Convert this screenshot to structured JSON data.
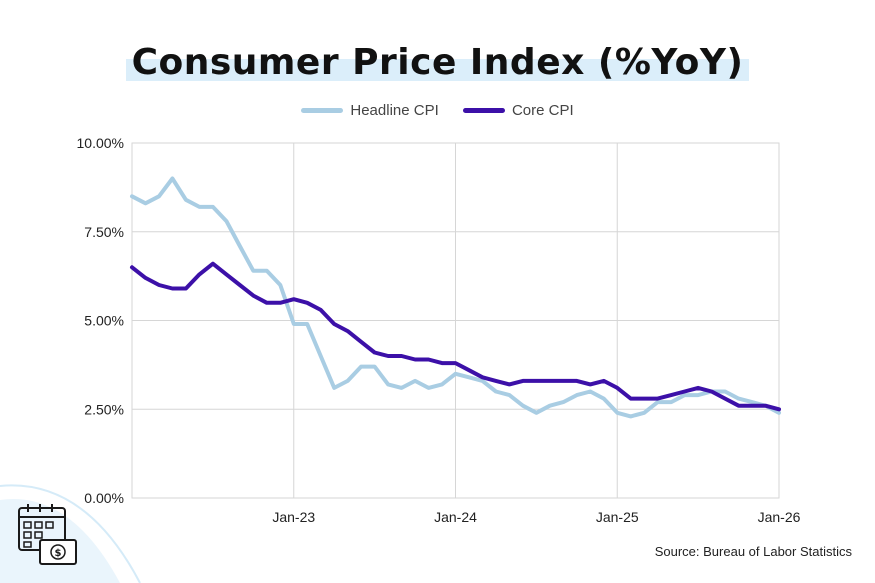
{
  "colors": {
    "headline": "#a9cde3",
    "core": "#3c10a8",
    "grid": "#d6d6d6",
    "title_highlight": "#dbeefa",
    "decor": "#e2f1fb"
  },
  "icons": [
    "calendar-money-icon"
  ],
  "source": "Source: Bureau of Labor Statistics",
  "chart_data": {
    "type": "line",
    "title": "Consumer Price Index (%YoY)",
    "xlabel": "",
    "ylabel": "",
    "ylim": [
      0,
      10
    ],
    "yticks": [
      "0.00%",
      "2.50%",
      "5.00%",
      "7.50%",
      "10.00%"
    ],
    "xticks": [
      "Jan-23",
      "Jan-24",
      "Jan-25",
      "Jan-26"
    ],
    "legend_position": "top-center",
    "grid": true,
    "x": [
      "Jan-22",
      "Feb-22",
      "Mar-22",
      "Apr-22",
      "May-22",
      "Jun-22",
      "Jul-22",
      "Aug-22",
      "Sep-22",
      "Oct-22",
      "Nov-22",
      "Dec-22",
      "Jan-23",
      "Feb-23",
      "Mar-23",
      "Apr-23",
      "May-23",
      "Jun-23",
      "Jul-23",
      "Aug-23",
      "Sep-23",
      "Oct-23",
      "Nov-23",
      "Dec-23",
      "Jan-24",
      "Feb-24",
      "Mar-24",
      "Apr-24",
      "May-24",
      "Jun-24",
      "Jul-24",
      "Aug-24",
      "Sep-24",
      "Oct-24",
      "Nov-24",
      "Dec-24",
      "Jan-25",
      "Feb-25",
      "Mar-25",
      "Apr-25",
      "May-25",
      "Jun-25",
      "Jul-25",
      "Aug-25",
      "Sep-25",
      "Oct-25",
      "Nov-25",
      "Dec-25",
      "Jan-26"
    ],
    "series": [
      {
        "name": "Headline CPI",
        "values": [
          8.5,
          8.3,
          8.5,
          9.0,
          8.4,
          8.2,
          8.2,
          7.8,
          7.1,
          6.4,
          6.4,
          6.0,
          4.9,
          4.9,
          4.0,
          3.1,
          3.3,
          3.7,
          3.7,
          3.2,
          3.1,
          3.3,
          3.1,
          3.2,
          3.5,
          3.4,
          3.3,
          3.0,
          2.9,
          2.6,
          2.4,
          2.6,
          2.7,
          2.9,
          3.0,
          2.8,
          2.4,
          2.3,
          2.4,
          2.7,
          2.7,
          2.9,
          2.9,
          3.0,
          3.0,
          2.8,
          2.7,
          2.6,
          2.4
        ]
      },
      {
        "name": "Core CPI",
        "values": [
          6.5,
          6.2,
          6.0,
          5.9,
          5.9,
          6.3,
          6.6,
          6.3,
          6.0,
          5.7,
          5.5,
          5.5,
          5.6,
          5.5,
          5.3,
          4.9,
          4.7,
          4.4,
          4.1,
          4.0,
          4.0,
          3.9,
          3.9,
          3.8,
          3.8,
          3.6,
          3.4,
          3.3,
          3.2,
          3.3,
          3.3,
          3.3,
          3.3,
          3.3,
          3.2,
          3.3,
          3.1,
          2.8,
          2.8,
          2.8,
          2.9,
          3.0,
          3.1,
          3.0,
          2.8,
          2.6,
          2.6,
          2.6,
          2.5
        ]
      }
    ]
  }
}
